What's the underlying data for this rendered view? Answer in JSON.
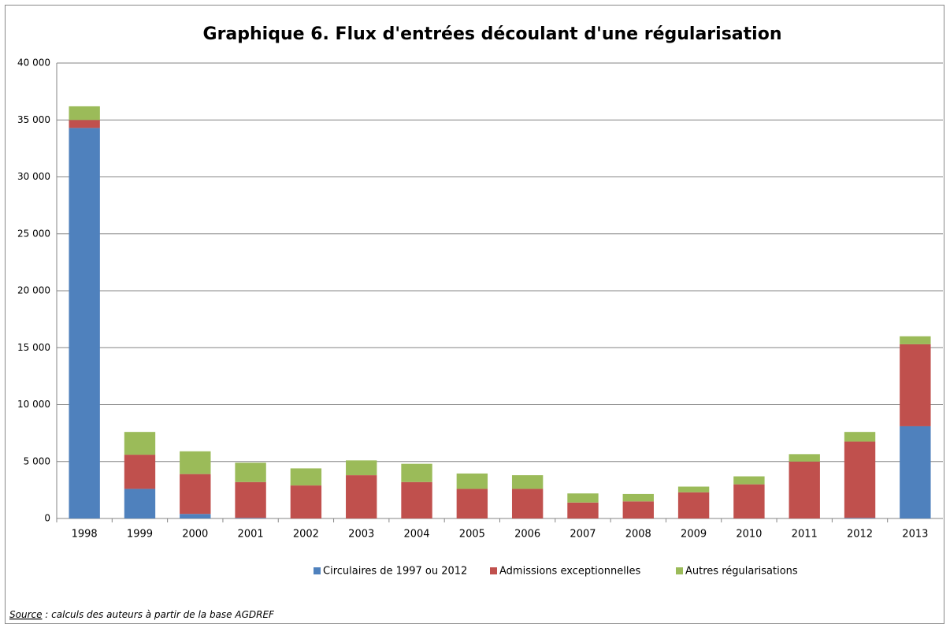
{
  "chart_data": {
    "type": "stacked_bar",
    "title": "Graphique 6. Flux d'entrées découlant d'une régularisation",
    "categories": [
      "1998",
      "1999",
      "2000",
      "2001",
      "2002",
      "2003",
      "2004",
      "2005",
      "2006",
      "2007",
      "2008",
      "2009",
      "2010",
      "2011",
      "2012",
      "2013"
    ],
    "series": [
      {
        "name": "Circulaires de 1997 ou 2012",
        "color": "#4f81bd",
        "values": [
          34300,
          2600,
          400,
          50,
          0,
          0,
          0,
          0,
          0,
          0,
          0,
          0,
          0,
          0,
          50,
          8100
        ]
      },
      {
        "name": "Admissions exceptionnelles",
        "color": "#c0504d",
        "values": [
          700,
          3000,
          3500,
          3150,
          2900,
          3800,
          3200,
          2600,
          2600,
          1400,
          1500,
          2300,
          3000,
          5000,
          6700,
          7200
        ]
      },
      {
        "name": "Autres régularisations",
        "color": "#9bbb59",
        "values": [
          1200,
          2000,
          2000,
          1700,
          1500,
          1300,
          1600,
          1350,
          1200,
          800,
          650,
          500,
          700,
          650,
          850,
          700
        ]
      }
    ],
    "ylim": [
      0,
      40000
    ],
    "yticks": [
      0,
      {
        "value": 5000,
        "label": "5 000"
      },
      {
        "value": 10000,
        "label": "10 000"
      },
      {
        "value": 15000,
        "label": "15 000"
      },
      {
        "value": 20000,
        "label": "20 000"
      },
      {
        "value": 25000,
        "label": "25 000"
      },
      {
        "value": 30000,
        "label": "30 000"
      },
      {
        "value": 35000,
        "label": "35 000"
      },
      {
        "value": 40000,
        "label": "40 000"
      }
    ],
    "grid": true,
    "legend": "bottom",
    "source_label": "Source",
    "source_text": " : calculs des auteurs à partir de la base AGDREF"
  }
}
